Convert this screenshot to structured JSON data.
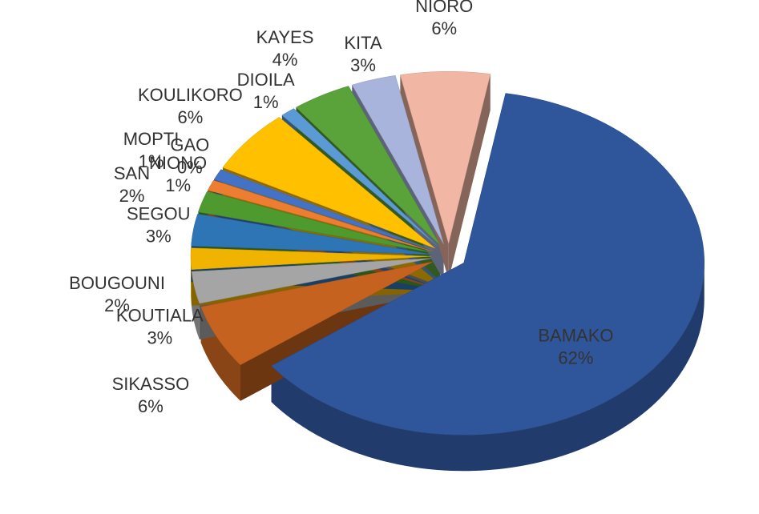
{
  "chart_data": {
    "type": "pie3d",
    "categories": [
      "BAMAKO",
      "SIKASSO",
      "KOUTIALA",
      "BOUGOUNI",
      "SEGOU",
      "SAN",
      "NIONO",
      "MOPTI",
      "GAO",
      "KOULIKORO",
      "DIOILA",
      "KAYES",
      "KITA",
      "NIORO"
    ],
    "values": [
      62,
      6,
      3,
      2,
      3,
      2,
      1,
      1,
      0,
      6,
      1,
      4,
      3,
      6
    ],
    "value_labels": [
      "62%",
      "6%",
      "3%",
      "2%",
      "3%",
      "2%",
      "1%",
      "1%",
      "0%",
      "6%",
      "1%",
      "4%",
      "3%",
      "6%"
    ],
    "colors": [
      "#2f559a",
      "#c5621f",
      "#a5a5a5",
      "#f0b400",
      "#2e75b6",
      "#4e9a2e",
      "#ed7d31",
      "#4472c4",
      "#8c8c8c",
      "#ffc000",
      "#5b9bd5",
      "#5aa23a",
      "#a9b4dc",
      "#f2b6a4"
    ]
  }
}
